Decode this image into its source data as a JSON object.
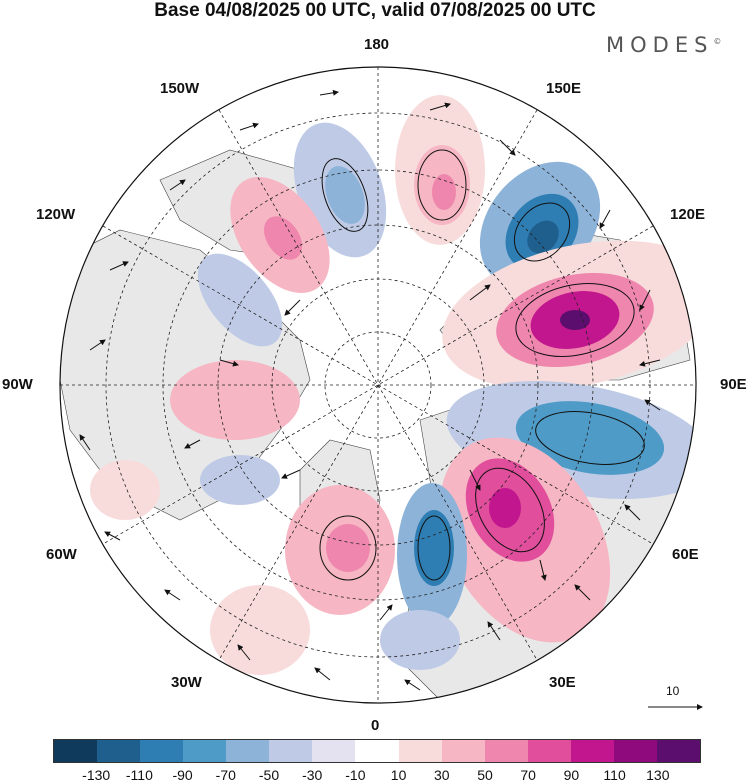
{
  "header": {
    "title": "Base 04/08/2025 00 UTC, valid 07/08/2025 00 UTC",
    "brand": "MODES",
    "brand_mark": "©"
  },
  "map": {
    "projection": "north polar stereographic",
    "longitude_labels": {
      "top": "180",
      "bottom": "0",
      "left": "90W",
      "right": "90E",
      "upper_left": "150W",
      "upper_right": "150E",
      "mid_upper_left": "120W",
      "mid_upper_right": "120E",
      "mid_lower_left": "60W",
      "mid_lower_right": "60E",
      "lower_left": "30W",
      "lower_right": "30E"
    },
    "reference_vector": "10"
  },
  "colorbar": {
    "colors": [
      "#0f3a5c",
      "#1f5f8e",
      "#2e7eb3",
      "#4f9bc7",
      "#8db3d9",
      "#bfcbe6",
      "#e4e2f0",
      "#ffffff",
      "#f8dcdc",
      "#f6b6c3",
      "#ef86ad",
      "#e04e9c",
      "#c1168d",
      "#8e0a7d",
      "#5b0e6e"
    ],
    "tick_labels": [
      "-130",
      "-110",
      "-90",
      "-70",
      "-50",
      "-30",
      "-10",
      "10",
      "30",
      "50",
      "70",
      "90",
      "110",
      "130"
    ]
  }
}
